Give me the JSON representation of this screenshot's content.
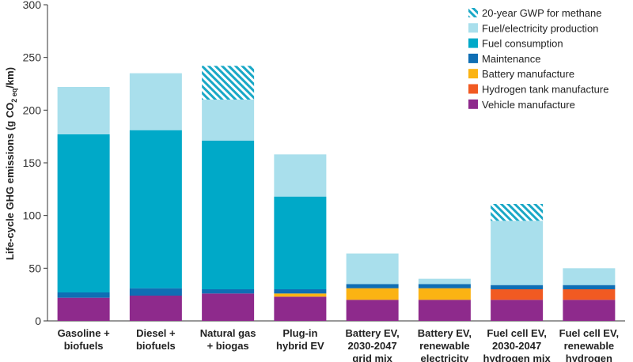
{
  "chart_data": {
    "type": "bar",
    "stacked": true,
    "ylabel_parts": [
      "Life-cycle GHG emissions (g CO",
      "2 eq",
      "/km)"
    ],
    "ylim": [
      0,
      300
    ],
    "yticks": [
      0,
      50,
      100,
      150,
      200,
      250,
      300
    ],
    "grid": false,
    "legend_position": "top-right",
    "categories": [
      [
        "Gasoline +",
        "biofuels"
      ],
      [
        "Diesel +",
        "biofuels"
      ],
      [
        "Natural gas",
        "+ biogas"
      ],
      [
        "Plug-in",
        "hybrid EV"
      ],
      [
        "Battery EV,",
        "2030-2047",
        "grid mix"
      ],
      [
        "Battery EV,",
        "renewable",
        "electricity"
      ],
      [
        "Fuel cell EV,",
        "2030-2047",
        "hydrogen mix"
      ],
      [
        "Fuel cell EV,",
        "renewable",
        "hydrogen"
      ]
    ],
    "series": [
      {
        "name": "Vehicle manufacture",
        "color": "#8e2a8c",
        "values": [
          22,
          24,
          26,
          23,
          20,
          20,
          20,
          20
        ]
      },
      {
        "name": "Hydrogen tank manufacture",
        "color": "#f15a22",
        "values": [
          0,
          0,
          0,
          0,
          0,
          0,
          10,
          10
        ]
      },
      {
        "name": "Battery manufacture",
        "color": "#fbb313",
        "values": [
          0,
          0,
          0,
          3,
          11,
          11,
          0,
          0
        ]
      },
      {
        "name": "Maintenance",
        "color": "#0f6eb4",
        "values": [
          5,
          7,
          4,
          4,
          4,
          4,
          4,
          4
        ]
      },
      {
        "name": "Fuel consumption",
        "color": "#00a9c8",
        "values": [
          150,
          150,
          141,
          88,
          0,
          0,
          0,
          0
        ]
      },
      {
        "name": "Fuel/electricity production",
        "color": "#a9dfec",
        "values": [
          45,
          54,
          39,
          40,
          29,
          5,
          61,
          16
        ]
      },
      {
        "name": "20-year GWP for methane",
        "color": "#1aa8c6",
        "pattern": "hatch",
        "values": [
          0,
          0,
          32,
          0,
          0,
          0,
          16,
          0
        ]
      }
    ],
    "legend_order": [
      "20-year GWP for methane",
      "Fuel/electricity production",
      "Fuel consumption",
      "Maintenance",
      "Battery manufacture",
      "Hydrogen tank manufacture",
      "Vehicle manufacture"
    ]
  }
}
